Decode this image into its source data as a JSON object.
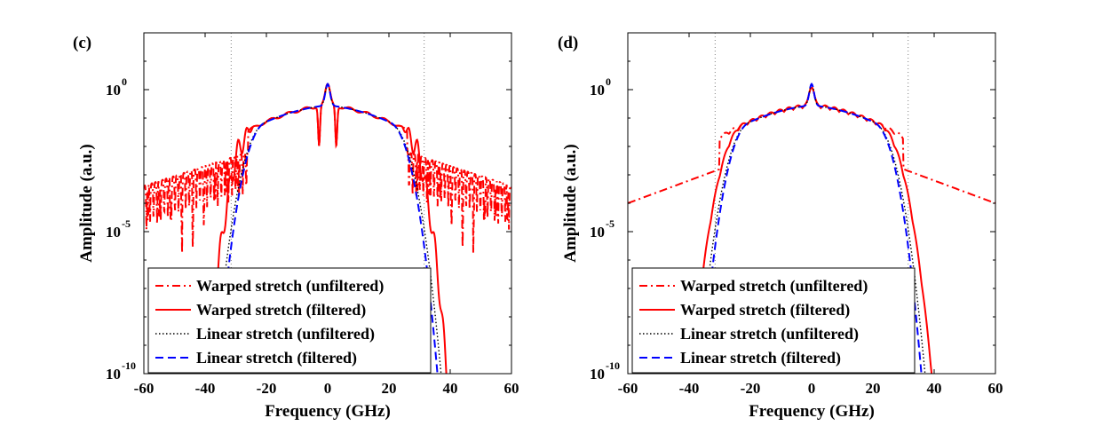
{
  "chart_data": [
    {
      "type": "line",
      "panel_label": "(c)",
      "xlabel": "Frequency (GHz)",
      "ylabel": "Amplitude (a.u.)",
      "xlim": [
        -60,
        60
      ],
      "ylim_log10": [
        -10,
        2
      ],
      "yscale": "log",
      "xticks": [
        "-60",
        "-40",
        "-20",
        "0",
        "20",
        "40",
        "60"
      ],
      "yticks": [
        {
          "base": "10",
          "exp": "0",
          "log10": 0
        },
        {
          "base": "10",
          "exp": "-5",
          "log10": -5
        },
        {
          "base": "10",
          "exp": "-10",
          "log10": -10
        }
      ],
      "reference_lines_x": [
        -31.5,
        31.5
      ],
      "legend": [
        "Warped stretch (unfiltered)",
        "Warped stretch (filtered)",
        "Linear stretch (unfiltered)",
        "Linear stretch (filtered)"
      ],
      "legend_position": "bottom-left",
      "series": [
        {
          "name": "Warped stretch (unfiltered)",
          "color": "#ff0000",
          "style": "dashdot",
          "model": "c_unfiltered"
        },
        {
          "name": "Warped stretch (filtered)",
          "color": "#ff0000",
          "style": "solid",
          "model": "c_filtered"
        },
        {
          "name": "Linear stretch (unfiltered)",
          "color": "#000000",
          "style": "dotted",
          "model": "linear_unfiltered"
        },
        {
          "name": "Linear stretch (filtered)",
          "color": "#0000ff",
          "style": "dashed",
          "model": "linear_filtered"
        }
      ]
    },
    {
      "type": "line",
      "panel_label": "(d)",
      "xlabel": "Frequency (GHz)",
      "ylabel": "Amplitude (a.u.)",
      "xlim": [
        -60,
        60
      ],
      "ylim_log10": [
        -10,
        2
      ],
      "yscale": "log",
      "xticks": [
        "-60",
        "-40",
        "-20",
        "0",
        "20",
        "40",
        "60"
      ],
      "yticks": [
        {
          "base": "10",
          "exp": "0",
          "log10": 0
        },
        {
          "base": "10",
          "exp": "-5",
          "log10": -5
        },
        {
          "base": "10",
          "exp": "-10",
          "log10": -10
        }
      ],
      "reference_lines_x": [
        -31.5,
        31.5
      ],
      "legend": [
        "Warped stretch (unfiltered)",
        "Warped stretch (filtered)",
        "Linear stretch (unfiltered)",
        "Linear stretch (filtered)"
      ],
      "legend_position": "bottom-left",
      "series": [
        {
          "name": "Warped stretch (unfiltered)",
          "color": "#ff0000",
          "style": "dashdot",
          "model": "d_unfiltered"
        },
        {
          "name": "Warped stretch (filtered)",
          "color": "#ff0000",
          "style": "solid",
          "model": "d_filtered"
        },
        {
          "name": "Linear stretch (unfiltered)",
          "color": "#000000",
          "style": "dotted",
          "model": "linear_unfiltered"
        },
        {
          "name": "Linear stretch (filtered)",
          "color": "#0000ff",
          "style": "dashed",
          "model": "linear_filtered"
        }
      ]
    }
  ]
}
